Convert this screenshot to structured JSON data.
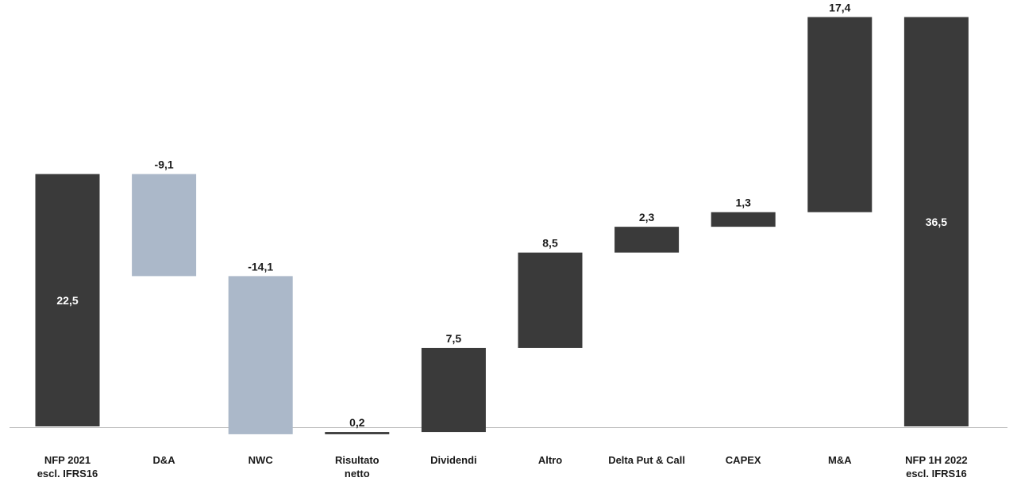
{
  "chart_data": {
    "type": "bar",
    "subtype": "waterfall",
    "title": "",
    "xlabel": "",
    "ylabel": "",
    "grid": false,
    "legend": "none",
    "categories": [
      "NFP 2021 escl. IFRS16",
      "D&A",
      "NWC",
      "Risultato netto",
      "Dividendi",
      "Altro",
      "Delta Put & Call",
      "CAPEX",
      "M&A",
      "NFP 1H 2022 escl. IFRS16"
    ],
    "category_lines": [
      [
        "NFP 2021",
        "escl. IFRS16"
      ],
      [
        "D&A"
      ],
      [
        "NWC"
      ],
      [
        "Risultato",
        "netto"
      ],
      [
        "Dividendi"
      ],
      [
        "Altro"
      ],
      [
        "Delta Put & Call"
      ],
      [
        "CAPEX"
      ],
      [
        "M&A"
      ],
      [
        "NFP 1H 2022",
        "escl. IFRS16"
      ]
    ],
    "values": [
      22.5,
      -9.1,
      -14.1,
      0.2,
      7.5,
      8.5,
      2.3,
      1.3,
      17.4,
      36.5
    ],
    "value_labels": [
      "22,5",
      "-9,1",
      "-14,1",
      "0,2",
      "7,5",
      "8,5",
      "2,3",
      "1,3",
      "17,4",
      "36,5"
    ],
    "bar_kind": [
      "total",
      "delta",
      "delta",
      "delta",
      "delta",
      "delta",
      "delta",
      "delta",
      "delta",
      "total"
    ],
    "colors": {
      "total": "#3a3a3a",
      "increase": "#3a3a3a",
      "decrease": "#abb8c9",
      "text_on_bar": "#ffffff",
      "text": "#1a1a1a",
      "axis": "#bfbfbf"
    }
  }
}
